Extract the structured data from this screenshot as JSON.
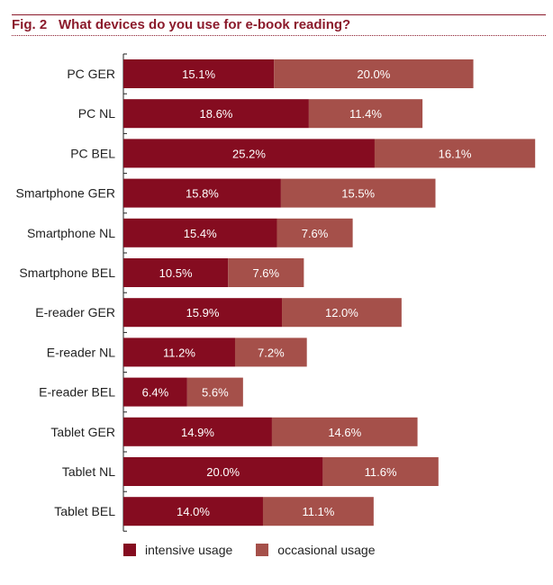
{
  "chart_data": {
    "type": "bar",
    "stacked": true,
    "orientation": "horizontal",
    "figure_label": "Fig. 2",
    "title": "What devices do you use for e-book reading?",
    "categories": [
      "PC GER",
      "PC NL",
      "PC BEL",
      "Smartphone GER",
      "Smartphone NL",
      "Smartphone BEL",
      "E-reader GER",
      "E-reader NL",
      "E-reader BEL",
      "Tablet GER",
      "Tablet NL",
      "Tablet BEL"
    ],
    "series": [
      {
        "name": "intensive usage",
        "color": "#850c20",
        "values": [
          15.1,
          18.6,
          25.2,
          15.8,
          15.4,
          10.5,
          15.9,
          11.2,
          6.4,
          14.9,
          20.0,
          14.0
        ]
      },
      {
        "name": "occasional usage",
        "color": "#a5504a",
        "values": [
          20.0,
          11.4,
          16.1,
          15.5,
          7.6,
          7.6,
          12.0,
          7.2,
          5.6,
          14.6,
          11.6,
          11.1
        ]
      }
    ],
    "value_format": "%",
    "legend_position": "bottom-left",
    "grid": false
  }
}
